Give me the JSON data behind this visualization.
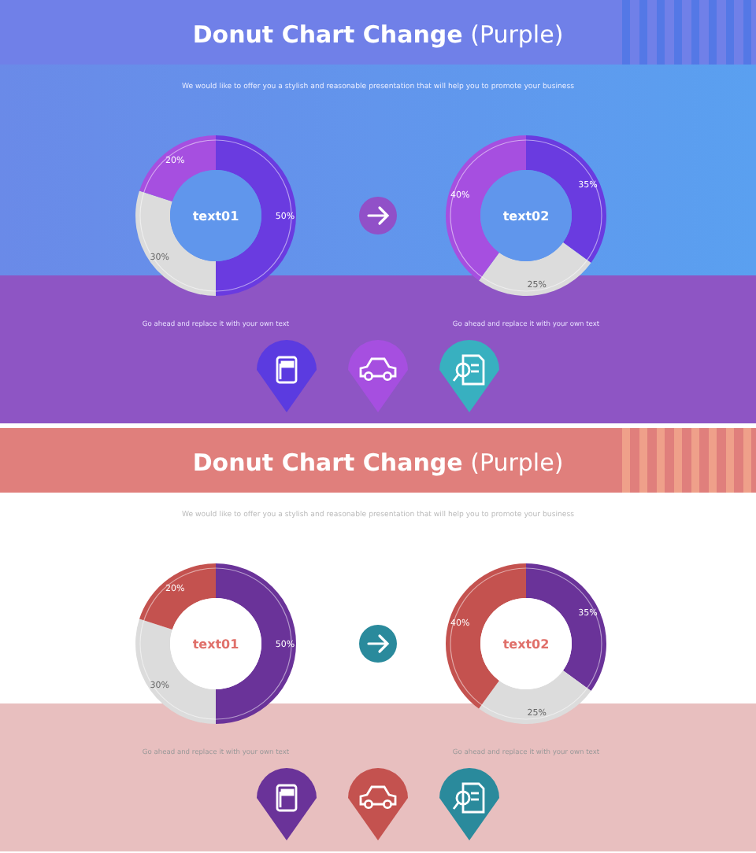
{
  "chart_data": [
    {
      "type": "other",
      "title": "Donut Chart Change (Purple)",
      "subtitle": "We would like to offer you a stylish and reasonable presentation that will help you to promote your business"
    },
    {
      "type": "donut",
      "title": "text01",
      "categories": [
        null,
        null,
        null
      ],
      "values": [
        50,
        30,
        20
      ],
      "colors": [
        "#6a3be0",
        "#dcdcdc",
        "#a64fe0"
      ],
      "value_labels": [
        "50%",
        "30%",
        "20%"
      ],
      "annotations": [
        "Go ahead and replace it with your own text"
      ]
    },
    {
      "type": "donut",
      "title": "text02",
      "categories": [
        null,
        null,
        null
      ],
      "values": [
        35,
        25,
        40
      ],
      "colors": [
        "#6a3be0",
        "#dcdcdc",
        "#a64fe0"
      ],
      "value_labels": [
        "35%",
        "25%",
        "40%"
      ],
      "annotations": [
        "Go ahead and replace it with your own text"
      ]
    },
    {
      "type": "other",
      "title": "Donut Chart Change (Purple)",
      "subtitle": "We would like to offer you a stylish and reasonable presentation that will help you to promote your business"
    },
    {
      "type": "donut",
      "title": "text01",
      "categories": [
        null,
        null,
        null
      ],
      "values": [
        50,
        30,
        20
      ],
      "colors": [
        "#6a3399",
        "#dcdcdc",
        "#c4524f"
      ],
      "value_labels": [
        "50%",
        "30%",
        "20%"
      ],
      "annotations": [
        "Go ahead and replace it with your own text"
      ]
    },
    {
      "type": "donut",
      "title": "text02",
      "categories": [
        null,
        null,
        null
      ],
      "values": [
        35,
        25,
        40
      ],
      "colors": [
        "#6a3399",
        "#dcdcdc",
        "#c4524f"
      ],
      "value_labels": [
        "35%",
        "25%",
        "40%"
      ],
      "annotations": [
        "Go ahead and replace it with your own text"
      ]
    }
  ]
}
